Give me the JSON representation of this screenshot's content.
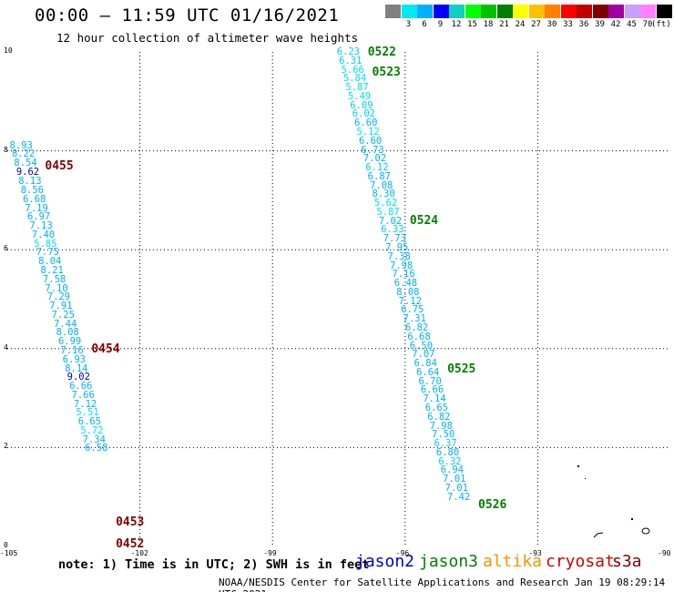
{
  "title": "00:00 – 11:59 UTC 01/16/2021",
  "subtitle": "12 hour collection of altimeter wave heights",
  "footer": "NOAA/NESDIS Center for Satellite Applications and Research    Jan 19 08:29:14 UTC 2021",
  "note": "note:  1) Time is in UTC;  2) SWH is in feet",
  "colorbar": {
    "unit": "(ft)",
    "colors": [
      "#808080",
      "#00e8f0",
      "#00b0ff",
      "#0000ff",
      "#10d0c0",
      "#00ff00",
      "#00c000",
      "#008000",
      "#ffff00",
      "#ffc000",
      "#ff8000",
      "#ff0000",
      "#c00000",
      "#800000",
      "#a000a0",
      "#c8a0ff",
      "#ff80ff",
      "#000000"
    ],
    "labels": [
      "3",
      "6",
      "9",
      "12",
      "15",
      "18",
      "21",
      "24",
      "27",
      "30",
      "33",
      "36",
      "39",
      "42",
      "45",
      "70"
    ]
  },
  "satellites": [
    {
      "name": "jason2",
      "color": "#0000d0"
    },
    {
      "name": "jason3",
      "color": "#008000"
    },
    {
      "name": "altika",
      "color": "#ff9000"
    },
    {
      "name": "cryosat",
      "color": "#d00000"
    },
    {
      "name": "s3a",
      "color": "#800000"
    }
  ],
  "axes": {
    "x_ticks": [
      "-105",
      "-102",
      "-99",
      "-96",
      "-93",
      "-90"
    ],
    "y_ticks": [
      "0",
      "2",
      "4",
      "6",
      "8",
      "10"
    ],
    "xlim": [
      -105,
      -90
    ],
    "ylim": [
      0,
      10
    ]
  },
  "chart_data": {
    "type": "scatter",
    "tracks": [
      {
        "name": "s3a",
        "color": "#800000",
        "passes": [
          {
            "label": "0455",
            "lat": 7.7
          },
          {
            "label": "0454",
            "lat": 4.0
          },
          {
            "label": "0453",
            "lat": 0.5
          },
          {
            "label": "0452",
            "lat": 0.05
          }
        ],
        "points": [
          {
            "lon": -104.7,
            "lat": 8.1,
            "v": "8.93",
            "c": "#00b0ff"
          },
          {
            "lon": -104.65,
            "lat": 7.93,
            "v": "8.22",
            "c": "#00b0ff"
          },
          {
            "lon": -104.6,
            "lat": 7.75,
            "v": "8.54",
            "c": "#00b0ff"
          },
          {
            "lon": -104.55,
            "lat": 7.57,
            "v": "9.62",
            "c": "#0000c0"
          },
          {
            "lon": -104.5,
            "lat": 7.38,
            "v": "8.13",
            "c": "#00b0ff"
          },
          {
            "lon": -104.45,
            "lat": 7.2,
            "v": "8.56",
            "c": "#00b0ff"
          },
          {
            "lon": -104.4,
            "lat": 7.02,
            "v": "6.68",
            "c": "#00b0ff"
          },
          {
            "lon": -104.35,
            "lat": 6.84,
            "v": "7.19",
            "c": "#00b0ff"
          },
          {
            "lon": -104.3,
            "lat": 6.66,
            "v": "6.97",
            "c": "#00b0ff"
          },
          {
            "lon": -104.25,
            "lat": 6.48,
            "v": "7.13",
            "c": "#00b0ff"
          },
          {
            "lon": -104.2,
            "lat": 6.3,
            "v": "7.40",
            "c": "#00b0ff"
          },
          {
            "lon": -104.15,
            "lat": 6.12,
            "v": "5.85",
            "c": "#00e0f0"
          },
          {
            "lon": -104.1,
            "lat": 5.94,
            "v": "7.75",
            "c": "#00b0ff"
          },
          {
            "lon": -104.05,
            "lat": 5.76,
            "v": "8.04",
            "c": "#00b0ff"
          },
          {
            "lon": -104.0,
            "lat": 5.58,
            "v": "8.21",
            "c": "#00b0ff"
          },
          {
            "lon": -103.95,
            "lat": 5.4,
            "v": "7.58",
            "c": "#00b0ff"
          },
          {
            "lon": -103.9,
            "lat": 5.22,
            "v": "7.10",
            "c": "#00b0ff"
          },
          {
            "lon": -103.85,
            "lat": 5.04,
            "v": "7.29",
            "c": "#00b0ff"
          },
          {
            "lon": -103.8,
            "lat": 4.86,
            "v": "7.91",
            "c": "#00b0ff"
          },
          {
            "lon": -103.75,
            "lat": 4.68,
            "v": "7.25",
            "c": "#00b0ff"
          },
          {
            "lon": -103.7,
            "lat": 4.5,
            "v": "7.44",
            "c": "#00b0ff"
          },
          {
            "lon": -103.65,
            "lat": 4.32,
            "v": "8.08",
            "c": "#00b0ff"
          },
          {
            "lon": -103.6,
            "lat": 4.14,
            "v": "6.99",
            "c": "#00b0ff"
          },
          {
            "lon": -103.55,
            "lat": 3.96,
            "v": "7.16",
            "c": "#00b0ff"
          },
          {
            "lon": -103.5,
            "lat": 3.78,
            "v": "6.93",
            "c": "#00b0ff"
          },
          {
            "lon": -103.45,
            "lat": 3.6,
            "v": "8.14",
            "c": "#00b0ff"
          },
          {
            "lon": -103.4,
            "lat": 3.42,
            "v": "9.02",
            "c": "#0000c0"
          },
          {
            "lon": -103.35,
            "lat": 3.24,
            "v": "6.66",
            "c": "#00b0ff"
          },
          {
            "lon": -103.3,
            "lat": 3.06,
            "v": "7.66",
            "c": "#00b0ff"
          },
          {
            "lon": -103.25,
            "lat": 2.88,
            "v": "7.12",
            "c": "#00b0ff"
          },
          {
            "lon": -103.2,
            "lat": 2.7,
            "v": "5.51",
            "c": "#00e0f0"
          },
          {
            "lon": -103.15,
            "lat": 2.52,
            "v": "6.65",
            "c": "#00b0ff"
          },
          {
            "lon": -103.1,
            "lat": 2.34,
            "v": "5.72",
            "c": "#00e0f0"
          },
          {
            "lon": -103.05,
            "lat": 2.16,
            "v": "7.34",
            "c": "#00b0ff"
          },
          {
            "lon": -103.0,
            "lat": 1.98,
            "v": "6.58",
            "c": "#00b0ff"
          }
        ]
      },
      {
        "name": "jason3",
        "color": "#008000",
        "passes": [
          {
            "label": "0522",
            "lat": 10.0
          },
          {
            "label": "0523",
            "lat": 9.6
          },
          {
            "label": "0524",
            "lat": 6.6
          },
          {
            "label": "0525",
            "lat": 3.6
          },
          {
            "label": "0526",
            "lat": 0.85
          }
        ],
        "points": [
          {
            "lon": -97.3,
            "lat": 10.0,
            "v": "6.23",
            "c": "#00d0f0"
          },
          {
            "lon": -97.25,
            "lat": 9.82,
            "v": "6.31",
            "c": "#00d0f0"
          },
          {
            "lon": -97.2,
            "lat": 9.64,
            "v": "5.66",
            "c": "#00e0f0"
          },
          {
            "lon": -97.15,
            "lat": 9.46,
            "v": "5.84",
            "c": "#00e0f0"
          },
          {
            "lon": -97.1,
            "lat": 9.28,
            "v": "5.87",
            "c": "#00e0f0"
          },
          {
            "lon": -97.05,
            "lat": 9.1,
            "v": "5.49",
            "c": "#00e0f0"
          },
          {
            "lon": -97.0,
            "lat": 8.92,
            "v": "6.09",
            "c": "#00d0f0"
          },
          {
            "lon": -96.95,
            "lat": 8.74,
            "v": "6.02",
            "c": "#00d0f0"
          },
          {
            "lon": -96.9,
            "lat": 8.56,
            "v": "6.60",
            "c": "#00b0ff"
          },
          {
            "lon": -96.85,
            "lat": 8.38,
            "v": "5.12",
            "c": "#00e0f0"
          },
          {
            "lon": -96.8,
            "lat": 8.2,
            "v": "6.60",
            "c": "#00b0ff"
          },
          {
            "lon": -96.75,
            "lat": 8.02,
            "v": "6.73",
            "c": "#00b0ff"
          },
          {
            "lon": -96.7,
            "lat": 7.84,
            "v": "7.02",
            "c": "#00b0ff"
          },
          {
            "lon": -96.65,
            "lat": 7.66,
            "v": "6.12",
            "c": "#00d0f0"
          },
          {
            "lon": -96.6,
            "lat": 7.48,
            "v": "6.87",
            "c": "#00b0ff"
          },
          {
            "lon": -96.55,
            "lat": 7.3,
            "v": "7.08",
            "c": "#00b0ff"
          },
          {
            "lon": -96.5,
            "lat": 7.12,
            "v": "8.30",
            "c": "#00b0ff"
          },
          {
            "lon": -96.45,
            "lat": 6.94,
            "v": "5.62",
            "c": "#00e0f0"
          },
          {
            "lon": -96.4,
            "lat": 6.76,
            "v": "5.87",
            "c": "#00e0f0"
          },
          {
            "lon": -96.35,
            "lat": 6.58,
            "v": "7.02",
            "c": "#00b0ff"
          },
          {
            "lon": -96.3,
            "lat": 6.4,
            "v": "6.33",
            "c": "#00d0f0"
          },
          {
            "lon": -96.25,
            "lat": 6.22,
            "v": "7.73",
            "c": "#00b0ff"
          },
          {
            "lon": -96.2,
            "lat": 6.04,
            "v": "7.95",
            "c": "#00b0ff"
          },
          {
            "lon": -96.15,
            "lat": 5.86,
            "v": "7.38",
            "c": "#00b0ff"
          },
          {
            "lon": -96.1,
            "lat": 5.68,
            "v": "7.98",
            "c": "#00b0ff"
          },
          {
            "lon": -96.05,
            "lat": 5.5,
            "v": "7.16",
            "c": "#00b0ff"
          },
          {
            "lon": -96.0,
            "lat": 5.32,
            "v": "6.48",
            "c": "#00b0ff"
          },
          {
            "lon": -95.95,
            "lat": 5.14,
            "v": "8.08",
            "c": "#00b0ff"
          },
          {
            "lon": -95.9,
            "lat": 4.96,
            "v": "7.12",
            "c": "#00b0ff"
          },
          {
            "lon": -95.85,
            "lat": 4.78,
            "v": "6.75",
            "c": "#00b0ff"
          },
          {
            "lon": -95.8,
            "lat": 4.6,
            "v": "7.31",
            "c": "#00b0ff"
          },
          {
            "lon": -95.75,
            "lat": 4.42,
            "v": "6.82",
            "c": "#00b0ff"
          },
          {
            "lon": -95.7,
            "lat": 4.24,
            "v": "6.68",
            "c": "#00b0ff"
          },
          {
            "lon": -95.65,
            "lat": 4.06,
            "v": "6.50",
            "c": "#00b0ff"
          },
          {
            "lon": -95.6,
            "lat": 3.88,
            "v": "7.07",
            "c": "#00b0ff"
          },
          {
            "lon": -95.55,
            "lat": 3.7,
            "v": "6.84",
            "c": "#00b0ff"
          },
          {
            "lon": -95.5,
            "lat": 3.52,
            "v": "6.64",
            "c": "#00b0ff"
          },
          {
            "lon": -95.45,
            "lat": 3.34,
            "v": "6.70",
            "c": "#00b0ff"
          },
          {
            "lon": -95.4,
            "lat": 3.16,
            "v": "6.66",
            "c": "#00b0ff"
          },
          {
            "lon": -95.35,
            "lat": 2.98,
            "v": "7.14",
            "c": "#00b0ff"
          },
          {
            "lon": -95.3,
            "lat": 2.8,
            "v": "6.65",
            "c": "#00b0ff"
          },
          {
            "lon": -95.25,
            "lat": 2.62,
            "v": "6.82",
            "c": "#00b0ff"
          },
          {
            "lon": -95.2,
            "lat": 2.44,
            "v": "7.98",
            "c": "#00b0ff"
          },
          {
            "lon": -95.15,
            "lat": 2.26,
            "v": "7.50",
            "c": "#00b0ff"
          },
          {
            "lon": -95.1,
            "lat": 2.08,
            "v": "6.37",
            "c": "#00d0f0"
          },
          {
            "lon": -95.05,
            "lat": 1.9,
            "v": "6.80",
            "c": "#00b0ff"
          },
          {
            "lon": -95.0,
            "lat": 1.72,
            "v": "6.32",
            "c": "#00d0f0"
          },
          {
            "lon": -94.95,
            "lat": 1.54,
            "v": "6.94",
            "c": "#00b0ff"
          },
          {
            "lon": -94.9,
            "lat": 1.36,
            "v": "7.01",
            "c": "#00b0ff"
          },
          {
            "lon": -94.85,
            "lat": 1.18,
            "v": "7.01",
            "c": "#00b0ff"
          },
          {
            "lon": -94.8,
            "lat": 1.0,
            "v": "7.42",
            "c": "#00b0ff"
          }
        ]
      }
    ]
  }
}
